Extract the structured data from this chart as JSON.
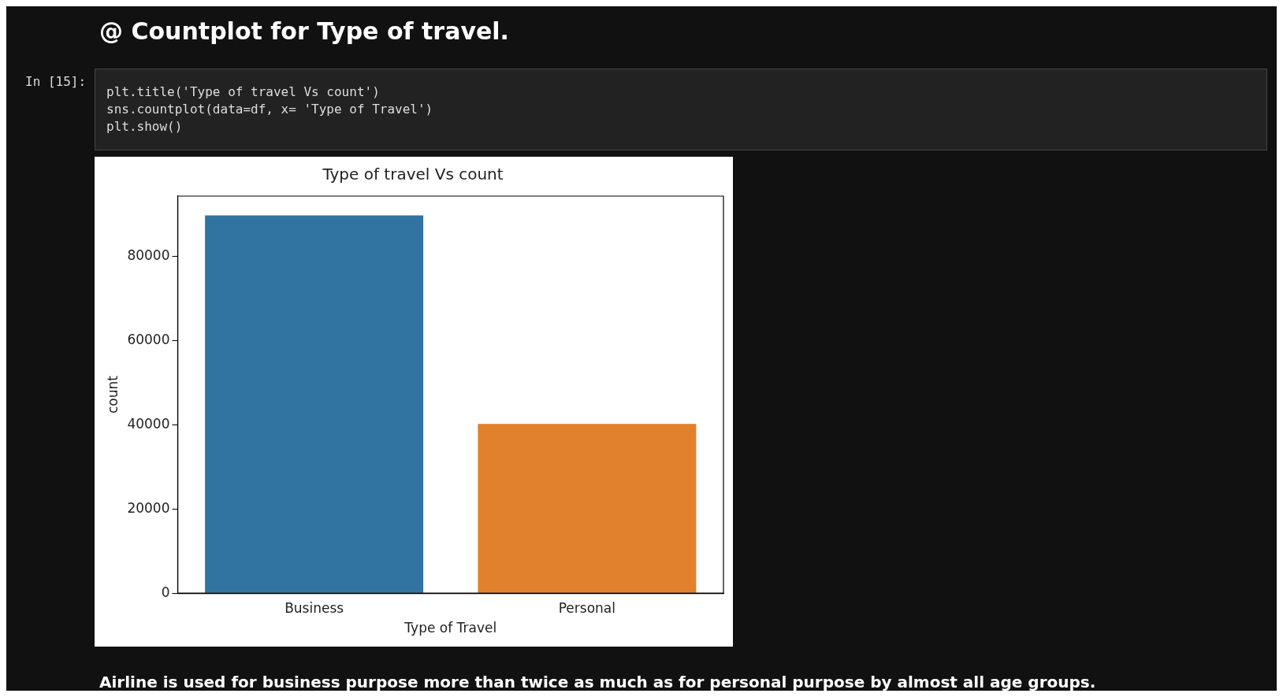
{
  "chart_data": {
    "type": "bar",
    "title": "Type of travel Vs count",
    "xlabel": "Type of Travel",
    "ylabel": "count",
    "categories": [
      "Business",
      "Personal"
    ],
    "values": [
      89700,
      40200
    ],
    "colors": [
      "#3274a1",
      "#e1812c"
    ],
    "ylim": [
      0,
      94300
    ],
    "yticks": [
      0,
      20000,
      40000,
      60000,
      80000
    ],
    "grid": false,
    "legend": false,
    "annotations": [
      "@ Countplot for Type of travel.",
      "In [15]:",
      "plt.title('Type of travel Vs count')",
      "sns.countplot(data=df, x= 'Type of Travel')",
      "plt.show()",
      "Airline is used for business purpose more than twice as much as for personal purpose by almost all age groups."
    ]
  }
}
